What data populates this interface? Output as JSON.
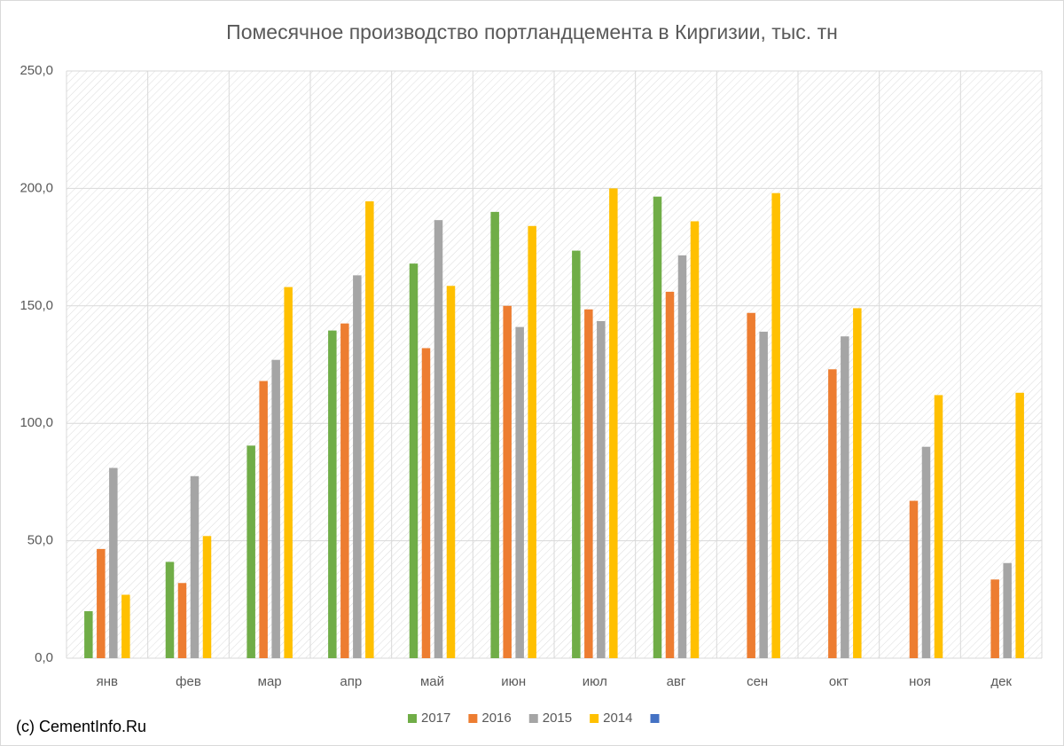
{
  "chart_data": {
    "type": "bar",
    "title": "Помесячное производство портландцемента в Киргизии, тыс. тн",
    "categories": [
      "янв",
      "фев",
      "мар",
      "апр",
      "май",
      "июн",
      "июл",
      "авг",
      "сен",
      "окт",
      "ноя",
      "дек"
    ],
    "series": [
      {
        "name": "2017",
        "color": "#70ad47",
        "values": [
          20,
          41,
          90.5,
          139.5,
          168,
          190,
          173.5,
          196.5,
          null,
          null,
          null,
          null
        ]
      },
      {
        "name": "2016",
        "color": "#ed7d31",
        "values": [
          46.5,
          32,
          118,
          142.5,
          132,
          150,
          148.5,
          156,
          147,
          123,
          67,
          33.5
        ]
      },
      {
        "name": "2015",
        "color": "#a5a5a5",
        "values": [
          81,
          77.5,
          127,
          163,
          186.5,
          141,
          143.5,
          171.5,
          139,
          137,
          90,
          40.5
        ]
      },
      {
        "name": "2014",
        "color": "#ffc000",
        "values": [
          27,
          52,
          158,
          194.5,
          158.5,
          184,
          200,
          186,
          198,
          149,
          112,
          113
        ]
      },
      {
        "color": "#4472c4",
        "values": [
          null,
          null,
          null,
          null,
          null,
          null,
          null,
          null,
          null,
          null,
          null,
          null
        ]
      }
    ],
    "ylim": [
      0,
      250
    ],
    "yticks": [
      {
        "value": 0,
        "label": "0,0"
      },
      {
        "value": 50,
        "label": "50,0"
      },
      {
        "value": 100,
        "label": "100,0"
      },
      {
        "value": 150,
        "label": "150,0"
      },
      {
        "value": 200,
        "label": "200,0"
      },
      {
        "value": 250,
        "label": "250,0"
      }
    ],
    "grid": true,
    "legend": "bottom",
    "source": "(c) CementInfo.Ru"
  }
}
